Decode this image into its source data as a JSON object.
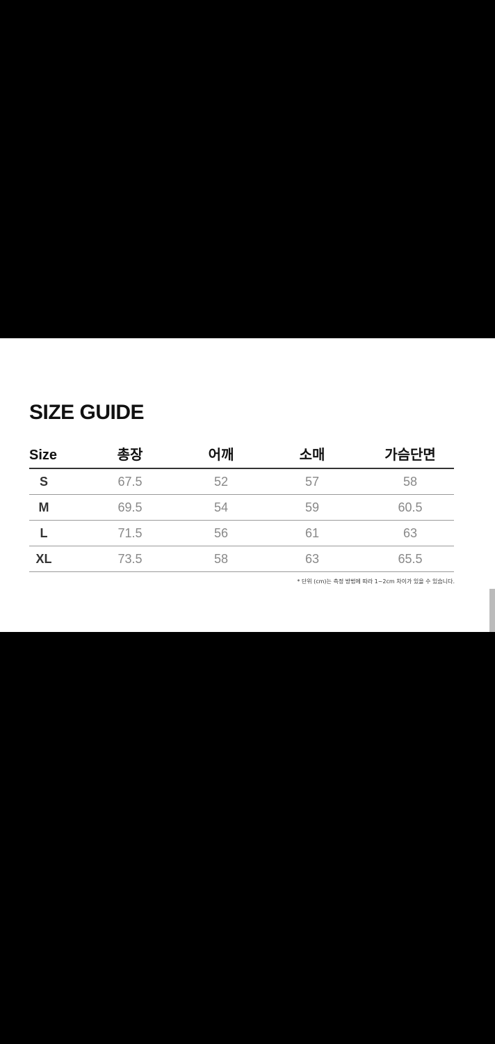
{
  "title": "SIZE GUIDE",
  "table": {
    "headers": [
      "Size",
      "총장",
      "어깨",
      "소매",
      "가슴단면"
    ],
    "rows": [
      [
        "S",
        "67.5",
        "52",
        "57",
        "58"
      ],
      [
        "M",
        "69.5",
        "54",
        "59",
        "60.5"
      ],
      [
        "L",
        "71.5",
        "56",
        "61",
        "63"
      ],
      [
        "XL",
        "73.5",
        "58",
        "63",
        "65.5"
      ]
    ]
  },
  "note": "* 단위 (cm)는 측정 방법에 따라 1~2cm 차이가 있을 수 있습니다."
}
